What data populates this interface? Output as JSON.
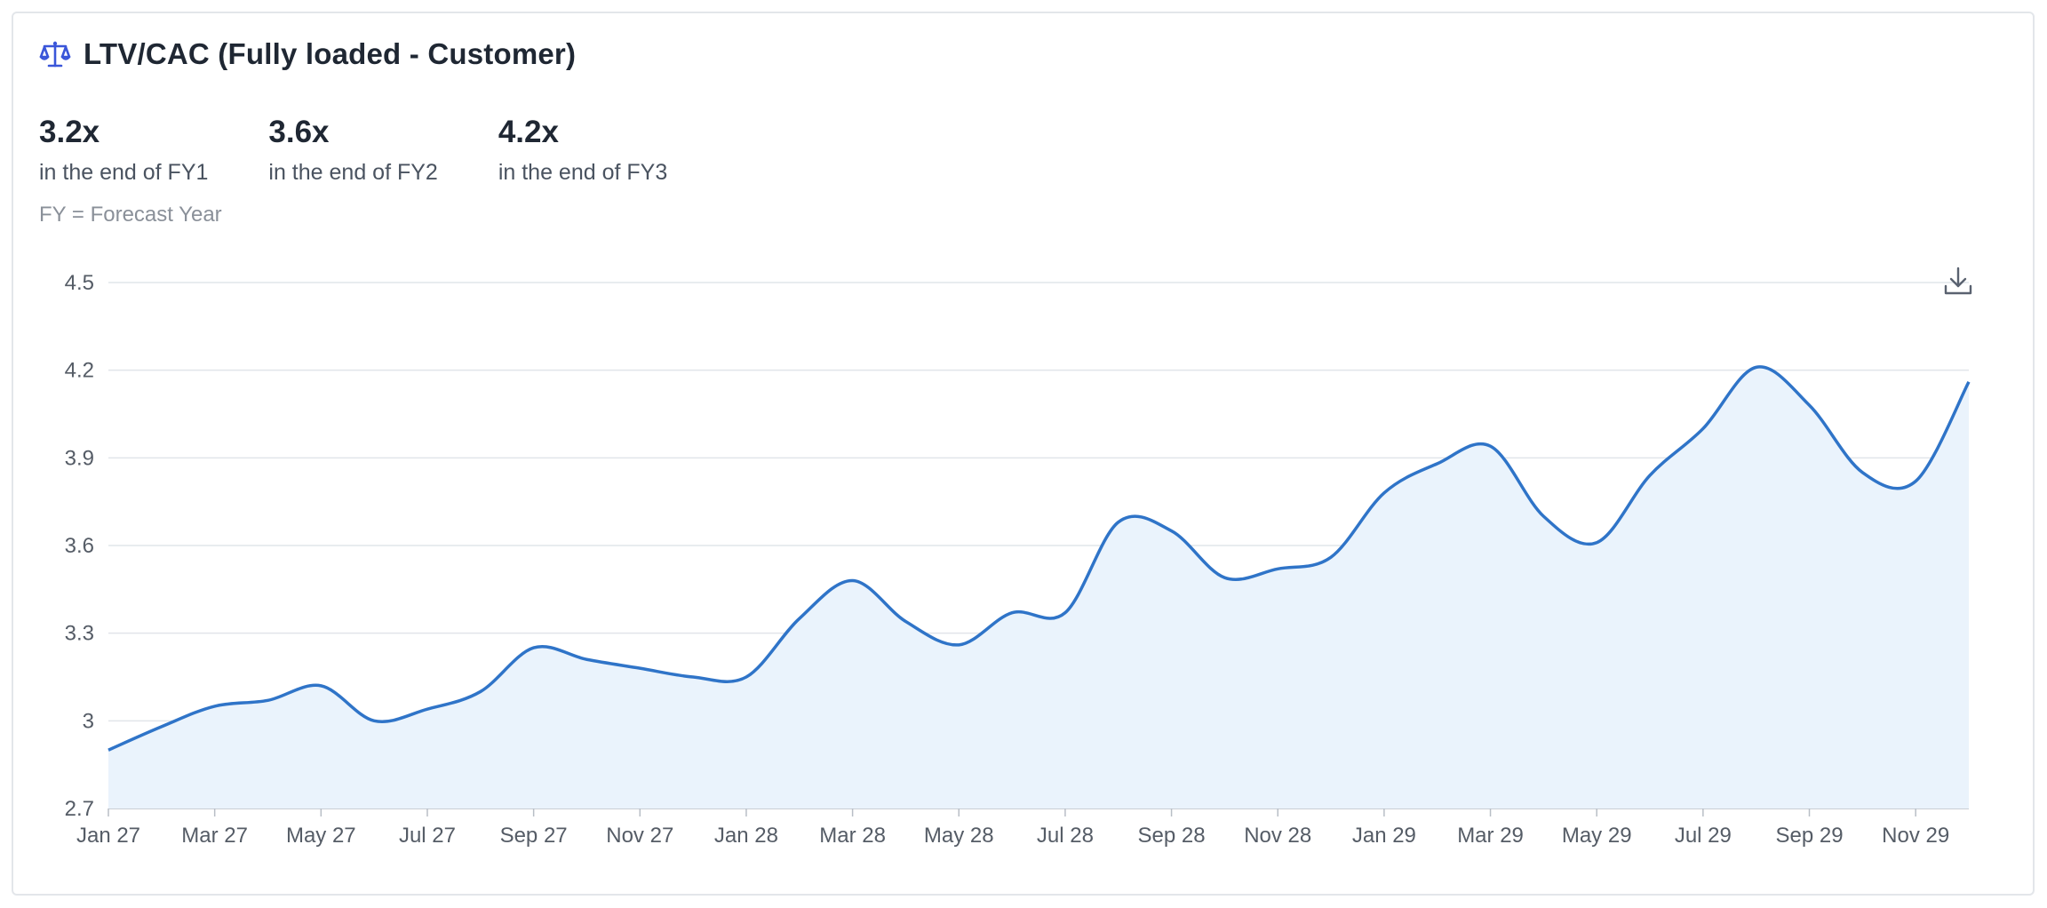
{
  "title": "LTV/CAC (Fully loaded - Customer)",
  "icon": "scale-icon",
  "download_icon": "download-icon",
  "kpis": [
    {
      "value": "3.2x",
      "label": "in the end of FY1"
    },
    {
      "value": "3.6x",
      "label": "in the end of FY2"
    },
    {
      "value": "4.2x",
      "label": "in the end of FY3"
    }
  ],
  "footnote": "FY = Forecast Year",
  "colors": {
    "line": "#2f74c8",
    "fill": "#eaf3fc",
    "grid": "#e1e5ea",
    "accent": "#3a56d9"
  },
  "chart_data": {
    "type": "area",
    "x": [
      "Jan 27",
      "Feb 27",
      "Mar 27",
      "Apr 27",
      "May 27",
      "Jun 27",
      "Jul 27",
      "Aug 27",
      "Sep 27",
      "Oct 27",
      "Nov 27",
      "Dec 27",
      "Jan 28",
      "Feb 28",
      "Mar 28",
      "Apr 28",
      "May 28",
      "Jun 28",
      "Jul 28",
      "Aug 28",
      "Sep 28",
      "Oct 28",
      "Nov 28",
      "Dec 28",
      "Jan 29",
      "Feb 29",
      "Mar 29",
      "Apr 29",
      "May 29",
      "Jun 29",
      "Jul 29",
      "Aug 29",
      "Sep 29",
      "Oct 29",
      "Nov 29",
      "Dec 29"
    ],
    "values": [
      2.9,
      2.98,
      3.05,
      3.07,
      3.12,
      3.0,
      3.04,
      3.1,
      3.25,
      3.21,
      3.18,
      3.15,
      3.15,
      3.35,
      3.48,
      3.34,
      3.26,
      3.37,
      3.37,
      3.68,
      3.65,
      3.49,
      3.52,
      3.56,
      3.78,
      3.88,
      3.94,
      3.7,
      3.61,
      3.84,
      4.0,
      4.21,
      4.08,
      3.85,
      3.82,
      4.16
    ],
    "xticks": [
      "Jan 27",
      "Mar 27",
      "May 27",
      "Jul 27",
      "Sep 27",
      "Nov 27",
      "Jan 28",
      "Mar 28",
      "May 28",
      "Jul 28",
      "Sep 28",
      "Nov 28",
      "Jan 29",
      "Mar 29",
      "May 29",
      "Jul 29",
      "Sep 29",
      "Nov 29"
    ],
    "ylim": [
      2.7,
      4.5
    ],
    "yticks": [
      {
        "value": 2.7,
        "label": "2.7"
      },
      {
        "value": 3.0,
        "label": "3"
      },
      {
        "value": 3.3,
        "label": "3.3"
      },
      {
        "value": 3.6,
        "label": "3.6"
      },
      {
        "value": 3.9,
        "label": "3.9"
      },
      {
        "value": 4.2,
        "label": "4.2"
      },
      {
        "value": 4.5,
        "label": "4.5"
      }
    ],
    "grid": true,
    "legend": "none"
  }
}
